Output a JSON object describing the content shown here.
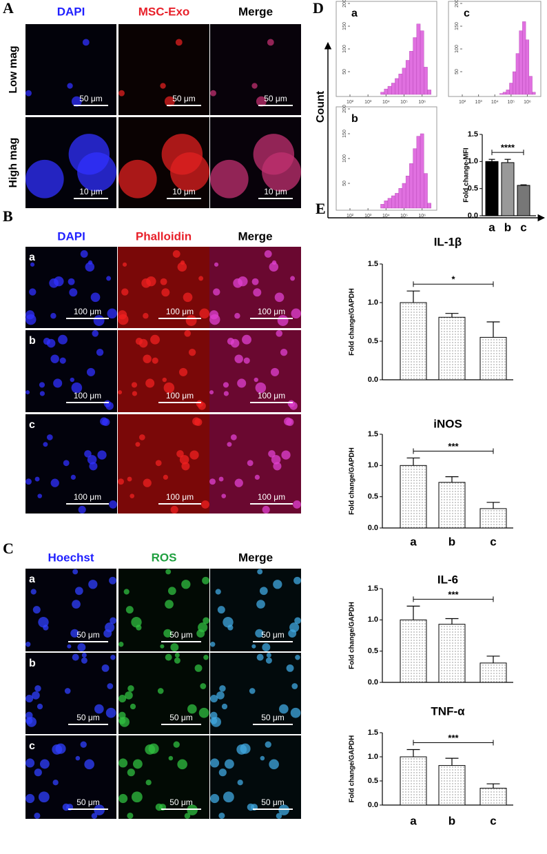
{
  "panels": [
    {
      "label": "A",
      "columns": [
        "DAPI",
        "MSC-Exo",
        "Merge"
      ],
      "column_colors": [
        "#2020ff",
        "#e8202a",
        "#000000"
      ],
      "rows": [
        {
          "label": "Low mag",
          "scale_bar": "50 μm"
        },
        {
          "label": "High mag",
          "scale_bar": "10 μm"
        }
      ]
    },
    {
      "label": "B",
      "columns": [
        "DAPI",
        "Phalloidin",
        "Merge"
      ],
      "column_colors": [
        "#2020ff",
        "#e8202a",
        "#000000"
      ],
      "rows": [
        {
          "label": "a",
          "scale_bar": "100 μm"
        },
        {
          "label": "b",
          "scale_bar": "100 μm"
        },
        {
          "label": "c",
          "scale_bar": "100 μm"
        }
      ]
    },
    {
      "label": "C",
      "columns": [
        "Hoechst",
        "ROS",
        "Merge"
      ],
      "column_colors": [
        "#2020ff",
        "#20a040",
        "#000000"
      ],
      "rows": [
        {
          "label": "a",
          "scale_bar": "50 μm"
        },
        {
          "label": "b",
          "scale_bar": "50 μm"
        },
        {
          "label": "c",
          "scale_bar": "50 μm"
        }
      ]
    }
  ],
  "flow": {
    "label": "D",
    "ylabel": "Count",
    "color": "#e070e0",
    "histogram_axes": {
      "xscale": "log",
      "xlim": [
        100,
        5011872
      ],
      "xticks": [
        {
          "value": 100,
          "label": "10²"
        },
        {
          "value": 1000,
          "label": "10³"
        },
        {
          "value": 10000,
          "label": "10⁴"
        },
        {
          "value": 100000,
          "label": "10⁵"
        },
        {
          "value": 1000000,
          "label": "10⁶"
        }
      ],
      "ylim": [
        0,
        200
      ],
      "yticks": [
        50,
        100,
        150,
        200
      ]
    },
    "histograms": [
      {
        "label": "a",
        "bins": [
          5012,
          7943,
          12589,
          19953,
          31623,
          50119,
          79433,
          125893,
          199526,
          316228,
          501187,
          794328,
          1258925,
          1995262,
          3162278,
          5011872
        ],
        "counts": [
          5,
          12,
          18,
          25,
          35,
          45,
          58,
          75,
          95,
          125,
          155,
          140,
          60,
          10,
          0
        ]
      },
      {
        "label": "b",
        "bins": [
          5012,
          7943,
          12589,
          19953,
          31623,
          50119,
          79433,
          125893,
          199526,
          316228,
          501187,
          794328,
          1258925,
          1995262,
          3162278,
          5011872
        ],
        "counts": [
          8,
          15,
          20,
          25,
          30,
          40,
          50,
          65,
          90,
          120,
          145,
          150,
          70,
          10,
          0
        ]
      },
      {
        "label": "c",
        "bins": [
          5012,
          7943,
          12589,
          19953,
          31623,
          50119,
          79433,
          125893,
          199526,
          316228,
          501187,
          794328,
          1258925,
          1995262,
          3162278,
          5011872
        ],
        "counts": [
          0,
          0,
          0,
          2,
          5,
          10,
          25,
          50,
          90,
          140,
          160,
          120,
          40,
          5,
          0
        ]
      }
    ],
    "mfi": {
      "type": "bar",
      "ylabel": "Fold change-MFI",
      "categories": [
        "a",
        "b",
        "c"
      ],
      "values": [
        1.0,
        0.98,
        0.56
      ],
      "errors": [
        0.04,
        0.06,
        0.01
      ],
      "colors": [
        "#000000",
        "#999999",
        "#777777"
      ],
      "ylim": [
        0,
        1.5
      ],
      "yticks": [
        {
          "value": 0,
          "label": "0.0"
        },
        {
          "value": 0.5,
          "label": "0.5"
        },
        {
          "value": 1,
          "label": "1.0"
        },
        {
          "value": 1.5,
          "label": "1.5"
        }
      ],
      "significance": "****"
    }
  },
  "qpcr": {
    "label": "E",
    "charts": [
      {
        "type": "bar",
        "title": "IL-1β",
        "ylabel": "Fold change/GAPDH",
        "categories": [
          null,
          null,
          null
        ],
        "values": [
          1.0,
          0.81,
          0.55
        ],
        "errors": [
          0.15,
          0.05,
          0.2
        ],
        "ylim": [
          0,
          1.5
        ],
        "yticks": [
          {
            "value": 0,
            "label": "0.0"
          },
          {
            "value": 0.5,
            "label": "0.5"
          },
          {
            "value": 1,
            "label": "1.0"
          },
          {
            "value": 1.5,
            "label": "1.5"
          }
        ],
        "significance": "*"
      },
      {
        "type": "bar",
        "title": "iNOS",
        "ylabel": "Fold change/GAPDH",
        "categories": [
          "a",
          "b",
          "c"
        ],
        "values": [
          1.0,
          0.73,
          0.31
        ],
        "errors": [
          0.12,
          0.09,
          0.1
        ],
        "ylim": [
          0,
          1.5
        ],
        "yticks": [
          {
            "value": 0,
            "label": "0.0"
          },
          {
            "value": 0.5,
            "label": "0.5"
          },
          {
            "value": 1,
            "label": "1.0"
          },
          {
            "value": 1.5,
            "label": "1.5"
          }
        ],
        "significance": "***"
      },
      {
        "type": "bar",
        "title": "IL-6",
        "ylabel": "Fold change/GAPDH",
        "categories": [
          null,
          null,
          null
        ],
        "values": [
          1.0,
          0.93,
          0.31
        ],
        "errors": [
          0.22,
          0.09,
          0.11
        ],
        "ylim": [
          0,
          1.5
        ],
        "yticks": [
          {
            "value": 0,
            "label": "0.0"
          },
          {
            "value": 0.5,
            "label": "0.5"
          },
          {
            "value": 1,
            "label": "1.0"
          },
          {
            "value": 1.5,
            "label": "1.5"
          }
        ],
        "significance": "***"
      },
      {
        "type": "bar",
        "title": "TNF-α",
        "ylabel": "Fold change/GAPDH",
        "categories": [
          "a",
          "b",
          "c"
        ],
        "values": [
          1.0,
          0.82,
          0.35
        ],
        "errors": [
          0.15,
          0.15,
          0.09
        ],
        "ylim": [
          0,
          1.5
        ],
        "yticks": [
          {
            "value": 0,
            "label": "0.0"
          },
          {
            "value": 0.5,
            "label": "0.5"
          },
          {
            "value": 1,
            "label": "1.0"
          },
          {
            "value": 1.5,
            "label": "1.5"
          }
        ],
        "significance": "***"
      }
    ]
  }
}
